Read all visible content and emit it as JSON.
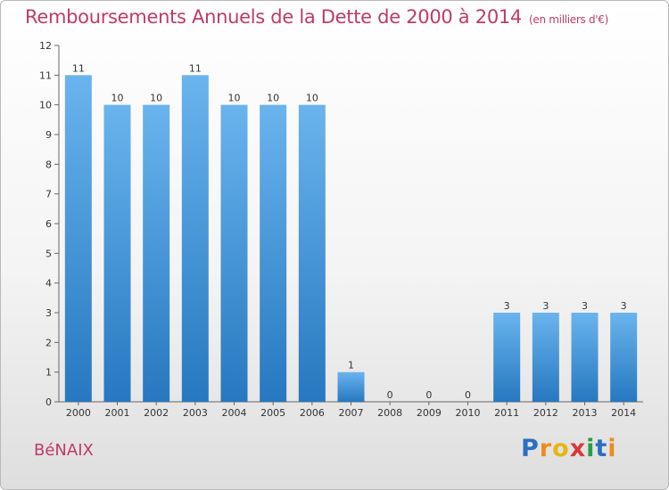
{
  "title": "Remboursements Annuels de la Dette de 2000 à 2014",
  "unit": "(en milliers d'€)",
  "commune": "BéNAIX",
  "logo": {
    "letters": [
      "P",
      "r",
      "o",
      "x",
      "i",
      "t",
      "i"
    ],
    "colors": [
      "#2a6fc0",
      "#f08a1c",
      "#e8b514",
      "#d63a3a",
      "#2a9d47",
      "#2a6fc0",
      "#f08a1c"
    ]
  },
  "colors": {
    "title": "#c0396b",
    "bar_light": "#6ab4ee",
    "bar_dark": "#2678c0",
    "text": "#333333"
  },
  "chart_data": {
    "type": "bar",
    "title": "Remboursements Annuels de la Dette de 2000 à 2014",
    "subtitle": "(en milliers d'€)",
    "categories": [
      "2000",
      "2001",
      "2002",
      "2003",
      "2004",
      "2005",
      "2006",
      "2007",
      "2008",
      "2009",
      "2010",
      "2011",
      "2012",
      "2013",
      "2014"
    ],
    "values": [
      11,
      10,
      10,
      11,
      10,
      10,
      10,
      1,
      0,
      0,
      0,
      3,
      3,
      3,
      3
    ],
    "data_labels": [
      "11",
      "10",
      "10",
      "11",
      "10",
      "10",
      "10",
      "1",
      "0",
      "0",
      "0",
      "3",
      "3",
      "3",
      "3"
    ],
    "ylim": [
      0,
      12
    ],
    "yticks": [
      "0",
      "1",
      "2",
      "3",
      "4",
      "5",
      "6",
      "7",
      "8",
      "9",
      "10",
      "11",
      "12"
    ],
    "xlabel": "",
    "ylabel": "",
    "grid": false,
    "legend": "none"
  }
}
